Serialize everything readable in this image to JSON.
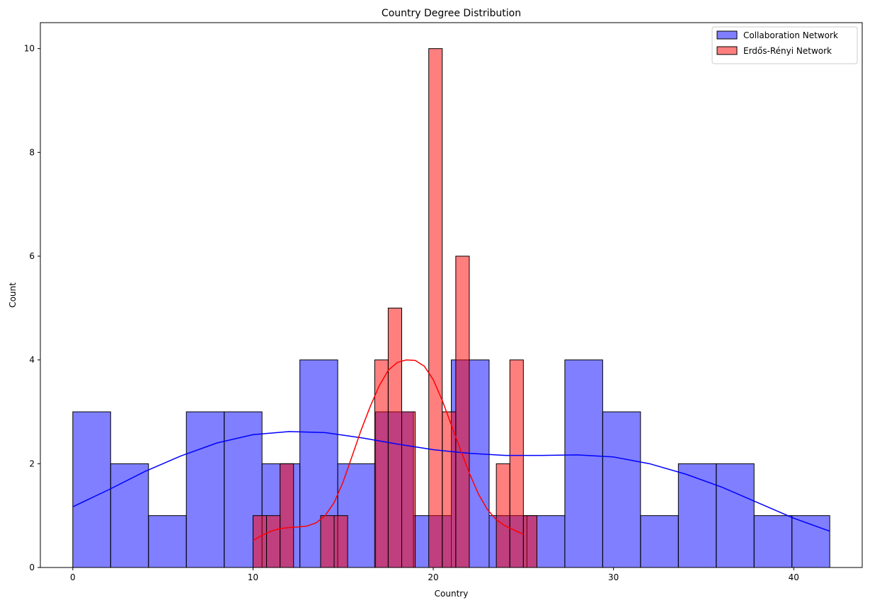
{
  "chart_data": {
    "type": "histogram",
    "title": "Country Degree Distribution",
    "xlabel": "Country",
    "ylabel": "Count",
    "xlim": [
      -1.8,
      43.8
    ],
    "ylim": [
      0,
      10.5
    ],
    "xticks": [
      0,
      10,
      20,
      30,
      40
    ],
    "yticks": [
      0,
      2,
      4,
      6,
      8,
      10
    ],
    "grid": false,
    "legend_position": "top-right",
    "series": [
      {
        "name": "Collaboration Network",
        "color": "#0000ff",
        "bar_alpha": 0.5,
        "bin_start": 0,
        "bin_width": 2.1,
        "counts": [
          3,
          2,
          1,
          3,
          3,
          2,
          4,
          2,
          3,
          1,
          4,
          1,
          1,
          4,
          3,
          1,
          2,
          2,
          1,
          1
        ],
        "kde": [
          [
            0,
            1.17
          ],
          [
            2,
            1.5
          ],
          [
            4,
            1.85
          ],
          [
            6,
            2.15
          ],
          [
            8,
            2.4
          ],
          [
            10,
            2.56
          ],
          [
            12,
            2.62
          ],
          [
            14,
            2.6
          ],
          [
            16,
            2.5
          ],
          [
            18,
            2.38
          ],
          [
            20,
            2.27
          ],
          [
            22,
            2.2
          ],
          [
            24,
            2.16
          ],
          [
            26,
            2.16
          ],
          [
            28,
            2.17
          ],
          [
            30,
            2.13
          ],
          [
            32,
            2.0
          ],
          [
            34,
            1.8
          ],
          [
            36,
            1.55
          ],
          [
            38,
            1.25
          ],
          [
            40,
            0.95
          ],
          [
            42,
            0.7
          ]
        ]
      },
      {
        "name": "Erdős-Rényi Network",
        "color": "#ff0000",
        "bar_alpha": 0.5,
        "bin_start": 10,
        "bin_width": 0.75,
        "counts": [
          1,
          1,
          2,
          0,
          0,
          1,
          1,
          0,
          0,
          4,
          5,
          3,
          0,
          10,
          3,
          6,
          0,
          0,
          2,
          4,
          1
        ],
        "kde": [
          [
            10,
            0.52
          ],
          [
            10.5,
            0.62
          ],
          [
            11,
            0.7
          ],
          [
            11.5,
            0.75
          ],
          [
            12,
            0.77
          ],
          [
            12.5,
            0.78
          ],
          [
            13,
            0.8
          ],
          [
            13.5,
            0.86
          ],
          [
            14,
            1.0
          ],
          [
            14.5,
            1.25
          ],
          [
            15,
            1.65
          ],
          [
            15.5,
            2.15
          ],
          [
            16,
            2.65
          ],
          [
            16.5,
            3.1
          ],
          [
            17,
            3.5
          ],
          [
            17.5,
            3.8
          ],
          [
            18,
            3.95
          ],
          [
            18.5,
            4.0
          ],
          [
            19,
            3.99
          ],
          [
            19.5,
            3.88
          ],
          [
            20,
            3.62
          ],
          [
            20.5,
            3.22
          ],
          [
            21,
            2.75
          ],
          [
            21.5,
            2.28
          ],
          [
            22,
            1.82
          ],
          [
            22.5,
            1.42
          ],
          [
            23,
            1.12
          ],
          [
            23.5,
            0.92
          ],
          [
            24,
            0.8
          ],
          [
            24.5,
            0.72
          ],
          [
            25,
            0.64
          ]
        ]
      }
    ]
  }
}
